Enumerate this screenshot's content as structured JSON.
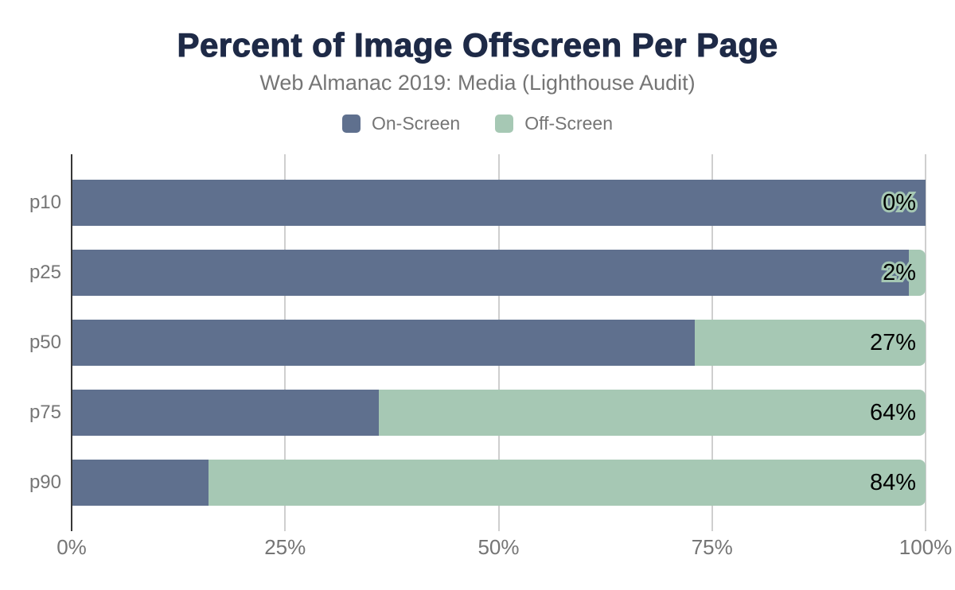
{
  "colors": {
    "background": "#ffffff",
    "title": "#1e2a47",
    "text_gray": "#757575",
    "gridline": "#cfcfcf",
    "axis_line": "#383838",
    "on_screen": "#5f708e",
    "off_screen": "#a6c8b4",
    "value_label": "#000000"
  },
  "chart_data": {
    "type": "bar",
    "orientation": "horizontal",
    "stacked": true,
    "title": "Percent of Image Offscreen Per Page",
    "subtitle": "Web Almanac 2019: Media (Lighthouse Audit)",
    "categories": [
      "p10",
      "p25",
      "p50",
      "p75",
      "p90"
    ],
    "series": [
      {
        "name": "On-Screen",
        "color": "#5f708e",
        "values": [
          100,
          98,
          73,
          36,
          16
        ]
      },
      {
        "name": "Off-Screen",
        "color": "#a6c8b4",
        "values": [
          0,
          2,
          27,
          64,
          84
        ]
      }
    ],
    "bar_labels": [
      "0%",
      "2%",
      "27%",
      "64%",
      "84%"
    ],
    "xlabel": "",
    "ylabel": "",
    "xlim": [
      0,
      100
    ],
    "x_tick_values": [
      0,
      25,
      50,
      75,
      100
    ],
    "x_ticks": [
      "0%",
      "25%",
      "50%",
      "75%",
      "100%"
    ],
    "grid": "vertical",
    "legend_position": "top"
  }
}
